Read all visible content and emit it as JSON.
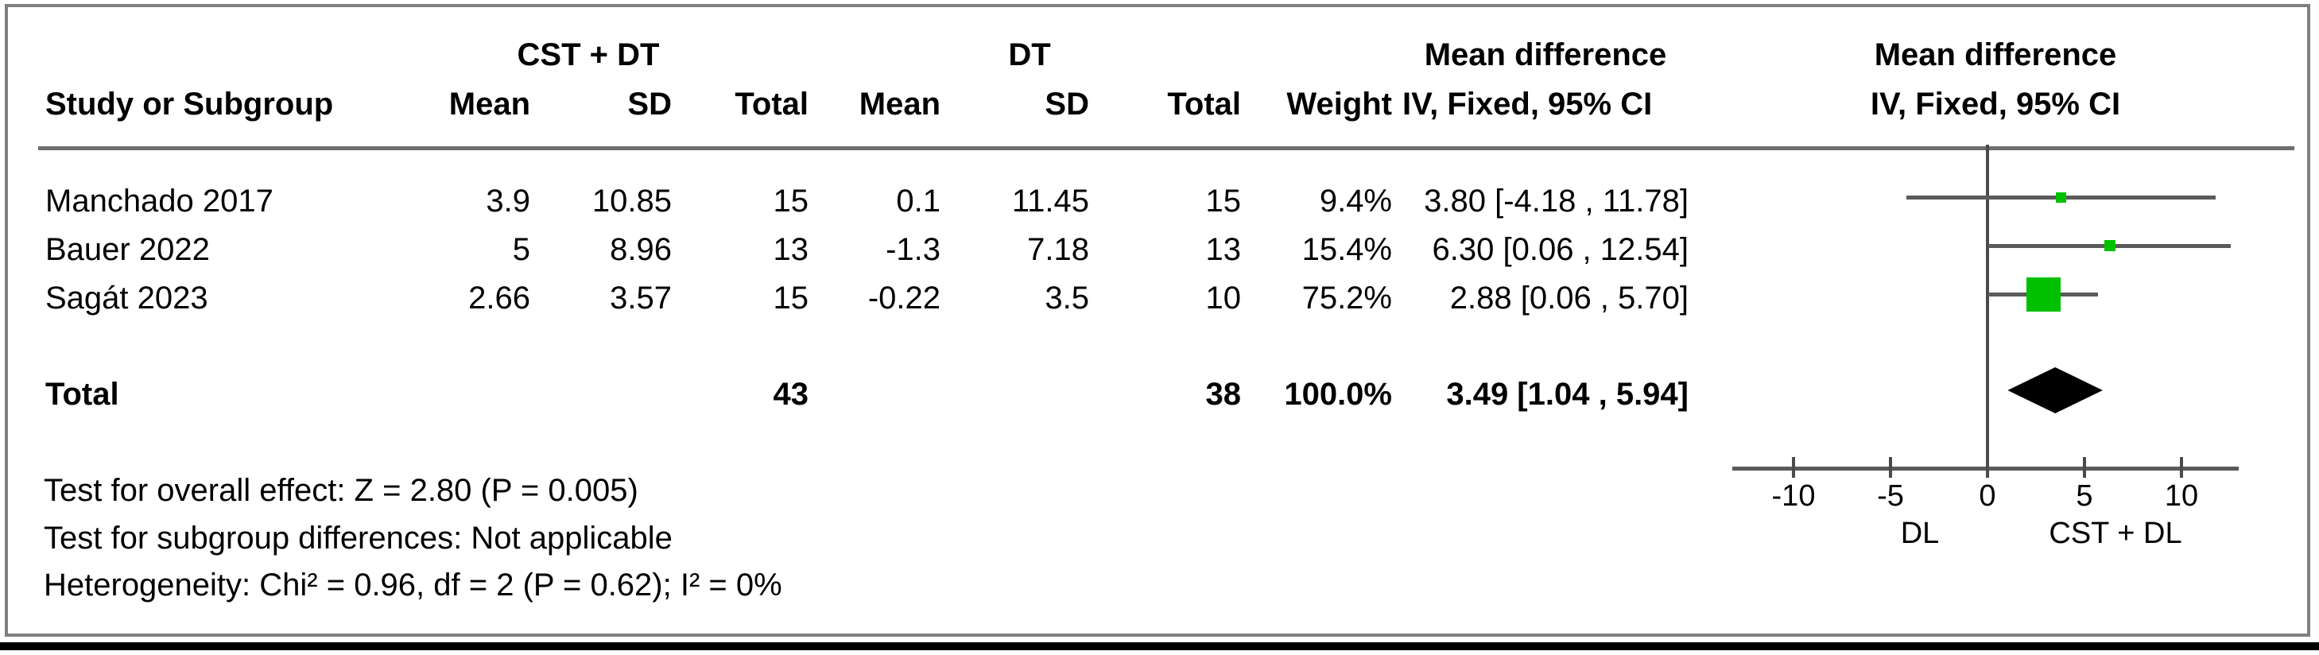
{
  "table": {
    "header": {
      "study": "Study or Subgroup",
      "group1": "CST + DT",
      "group2": "DT",
      "mean": "Mean",
      "sd": "SD",
      "total": "Total",
      "weight": "Weight",
      "md_text_col": "Mean difference",
      "iv_text_col": "IV, Fixed, 95% CI",
      "md_plot_col": "Mean difference",
      "iv_plot_col": "IV, Fixed, 95% CI"
    },
    "rows": [
      {
        "study": "Manchado 2017",
        "mean1": "3.9",
        "sd1": "10.85",
        "total1": "15",
        "mean2": "0.1",
        "sd2": "11.45",
        "total2": "15",
        "weight": "9.4%",
        "ci": "3.80 [-4.18 , 11.78]"
      },
      {
        "study": "Bauer 2022",
        "mean1": "5",
        "sd1": "8.96",
        "total1": "13",
        "mean2": "-1.3",
        "sd2": "7.18",
        "total2": "13",
        "weight": "15.4%",
        "ci": "6.30 [0.06 , 12.54]"
      },
      {
        "study": "Sagát 2023",
        "mean1": "2.66",
        "sd1": "3.57",
        "total1": "15",
        "mean2": "-0.22",
        "sd2": "3.5",
        "total2": "10",
        "weight": "75.2%",
        "ci": "2.88 [0.06 , 5.70]"
      }
    ],
    "total_row": {
      "label": "Total",
      "total1": "43",
      "total2": "38",
      "weight": "100.0%",
      "ci": "3.49 [1.04 , 5.94]"
    }
  },
  "footer": {
    "overall_effect": "Test for overall effect: Z = 2.80 (P = 0.005)",
    "subgroup_differences": "Test for subgroup differences: Not applicable",
    "heterogeneity": "Heterogeneity: Chi² = 0.96, df = 2 (P = 0.62); I² = 0%"
  },
  "chart_data": {
    "type": "forest",
    "title": "Mean difference, IV, Fixed, 95% CI",
    "x_axis": {
      "ticks": [
        -10,
        -5,
        0,
        5,
        10
      ],
      "range": [
        -13.2,
        13.0
      ],
      "left_label": "DL",
      "right_label": "CST + DL"
    },
    "studies": [
      {
        "name": "Manchado 2017",
        "effect": 3.8,
        "ci_low": -4.18,
        "ci_high": 11.78,
        "weight_pct": 9.4
      },
      {
        "name": "Bauer 2022",
        "effect": 6.3,
        "ci_low": 0.06,
        "ci_high": 12.54,
        "weight_pct": 15.4
      },
      {
        "name": "Sagát 2023",
        "effect": 2.88,
        "ci_low": 0.06,
        "ci_high": 5.7,
        "weight_pct": 75.2
      }
    ],
    "total": {
      "name": "Total",
      "effect": 3.49,
      "ci_low": 1.04,
      "ci_high": 5.94,
      "weight_pct": 100.0
    },
    "marker_color": "#00c000",
    "diamond_color": "#000000",
    "line_color": "#5a5a5a"
  }
}
